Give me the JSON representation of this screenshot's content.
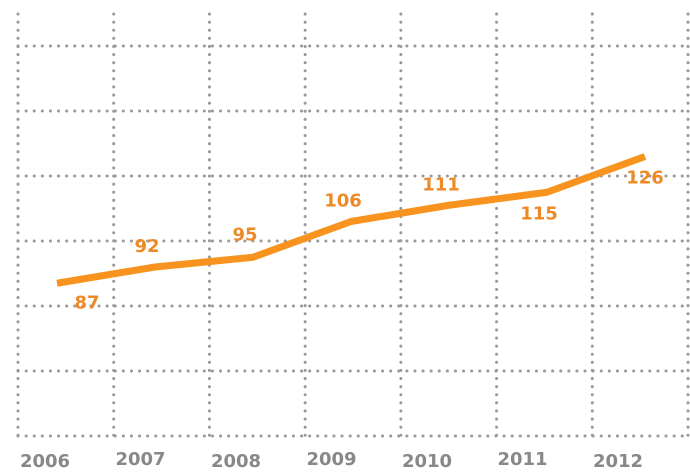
{
  "chart_data": {
    "type": "line",
    "categories": [
      "2006",
      "2007",
      "2008",
      "2009",
      "2010",
      "2011",
      "2012"
    ],
    "values": [
      87,
      92,
      95,
      106,
      111,
      115,
      126
    ],
    "color": "#f7931e",
    "ylim": [
      40,
      160
    ],
    "yticks": [
      40,
      60,
      80,
      100,
      120,
      140,
      160
    ],
    "grid": true
  }
}
